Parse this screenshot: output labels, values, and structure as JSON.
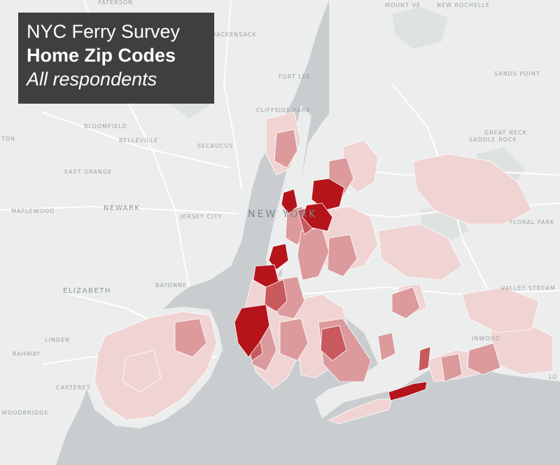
{
  "title": {
    "line1": "NYC Ferry Survey",
    "line2": "Home Zip Codes",
    "line3": "All respondents"
  },
  "places": {
    "paterson": "PATERSON",
    "mount_vernon": "MOUNT VE",
    "new_rochelle": "NEW ROCHELLE",
    "hackensack": "HACKENSACK",
    "fort_lee": "FORT LEE",
    "sands_point": "SANDS POINT",
    "cliffside_park": "CLIFFSIDE PARK",
    "bloomfield": "BLOOMFIELD",
    "belleville": "BELLEVILLE",
    "secaucus": "SECAUCUS",
    "great_neck": "GREAT NECK",
    "saddle_rock": "SADDLE ROCK",
    "east_orange": "EAST ORANGE",
    "maplewood": "MAPLEWOOD",
    "newark": "NEWARK",
    "jersey_city": "JERSEY CITY",
    "new_york": "NEW YORK",
    "floral_park": "FLORAL PARK",
    "bayonne": "BAYONNE",
    "elizabeth": "ELIZABETH",
    "valley_stream": "VALLEY STREAM",
    "linden": "LINDEN",
    "rahway": "RAHWAY",
    "carteret": "CARTERET",
    "woodbridge": "WOODBRIDGE",
    "inwood": "INWOOD",
    "ton": "TON",
    "lo": "LO"
  },
  "colors": {
    "water": "#c9cdd0",
    "land": "#eceded",
    "park": "#dfe3df",
    "road": "#ffffff",
    "zip_light": "#f0d4d4",
    "zip_mid": "#dc9a9c",
    "zip_dark": "#c8595d",
    "zip_max": "#b5141b"
  }
}
